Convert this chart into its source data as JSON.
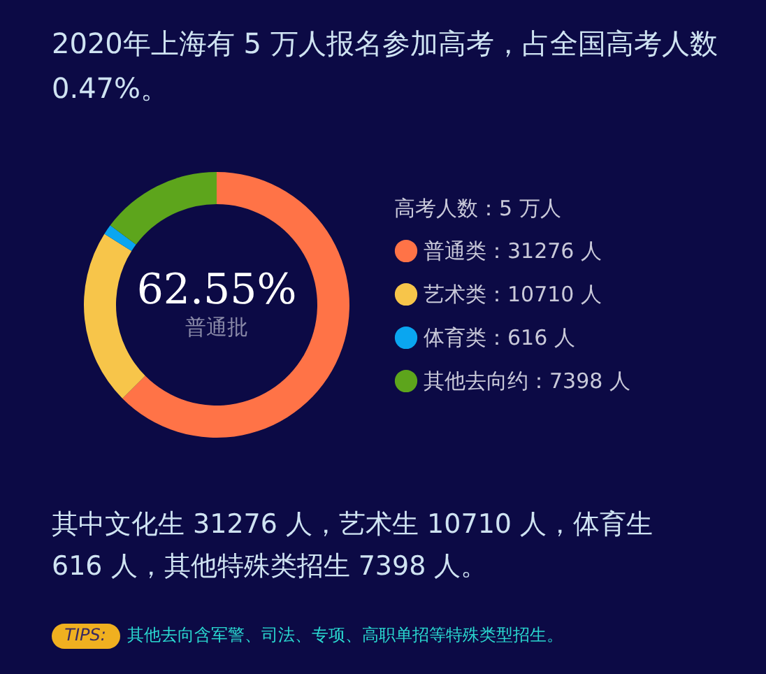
{
  "chart_data": {
    "type": "donut",
    "title": "2020年上海有 5 万人报名参加高考，占全国高考人数 0.47%。",
    "legend_title": "高考人数：5 万人",
    "categories": [
      "普通类：31276 人",
      "艺术类：10710 人",
      "体育类：616 人",
      "其他去向约：7398 人"
    ],
    "values": [
      31276,
      10710,
      616,
      7398
    ],
    "colors": [
      "#ff7347",
      "#f7c54a",
      "#0aa6f0",
      "#5da51c"
    ],
    "legend": "right",
    "annotations": [
      "62.55%",
      "普通批",
      "其中文化生 31276 人，艺术生 10710 人，体育生 616 人，其他特殊类招生 7398 人。",
      "TIPS:",
      "其他去向含军警、司法、专项、高职单招等特殊类型招生。"
    ]
  }
}
